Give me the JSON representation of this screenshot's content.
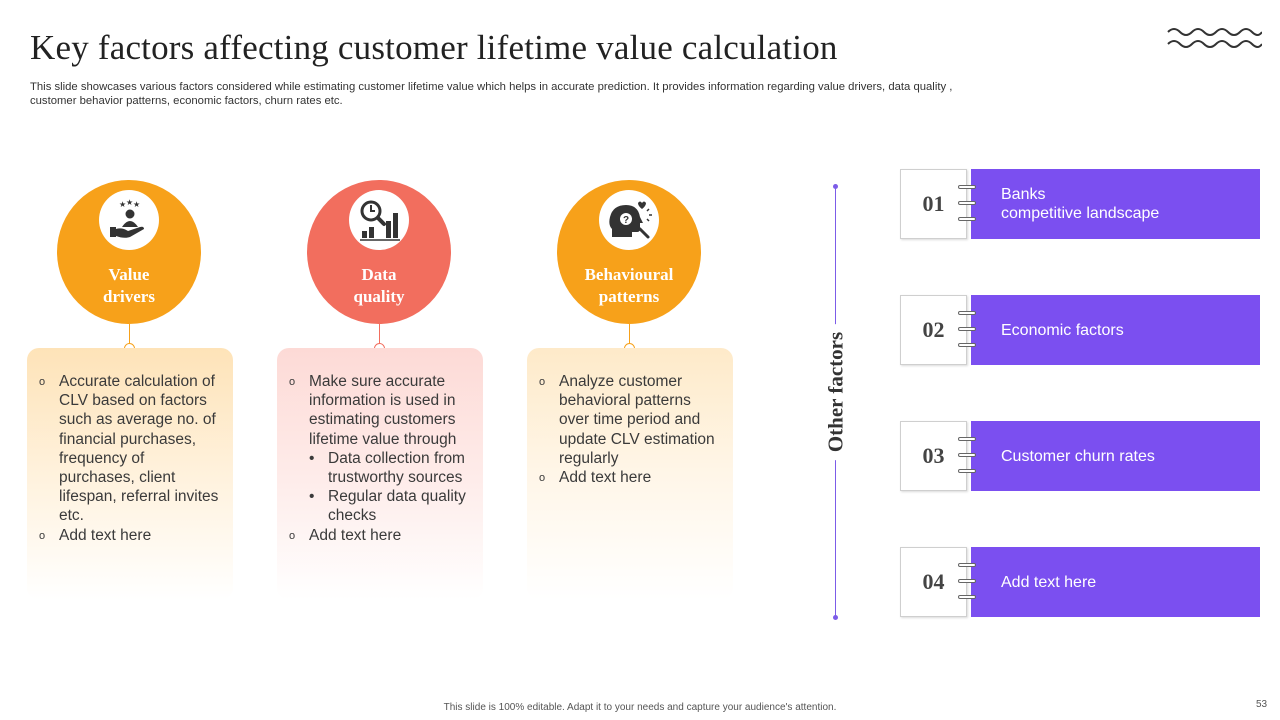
{
  "slide": {
    "title": "Key factors affecting customer lifetime value calculation",
    "subtitle": "This slide showcases various factors considered while estimating customer lifetime value which helps in accurate prediction. It provides information regarding value drivers, data quality , customer behavior patterns, economic factors, churn rates etc.",
    "footer": "This slide is 100% editable. Adapt it to your needs and capture your audience's attention.",
    "page_number": "53"
  },
  "columns": [
    {
      "label": "Value\ndrivers",
      "icon": "hand-star-person-icon",
      "color": "#F7A11A",
      "bullets": [
        {
          "text": "Accurate calculation of CLV based on factors such as average no. of financial purchases, frequency of purchases, client lifespan, referral invites etc."
        },
        {
          "text": "Add text here"
        }
      ]
    },
    {
      "label": "Data\nquality",
      "icon": "magnifier-chart-icon",
      "color": "#F26E5E",
      "bullets": [
        {
          "text": "Make sure accurate information is used in estimating customers lifetime value through"
        },
        {
          "sub": "Data collection from trustworthy  sources"
        },
        {
          "sub": "Regular data quality checks"
        },
        {
          "text": "Add text here"
        }
      ]
    },
    {
      "label": "Behavioural\npatterns",
      "icon": "head-question-icon",
      "color": "#F7A11A",
      "bullets": [
        {
          "text": "Analyze customer behavioral patterns over time period and update CLV estimation regularly"
        },
        {
          "text": "Add text here"
        }
      ]
    }
  ],
  "bullet_marker": "o",
  "sub_marker": "•",
  "other_factors": {
    "heading": "Other factors",
    "accent": "#7B4FF0",
    "items": [
      {
        "num": "01",
        "text": "Banks\ncompetitive landscape"
      },
      {
        "num": "02",
        "text": "Economic factors"
      },
      {
        "num": "03",
        "text": "Customer churn rates"
      },
      {
        "num": "04",
        "text": "Add text here"
      }
    ]
  }
}
